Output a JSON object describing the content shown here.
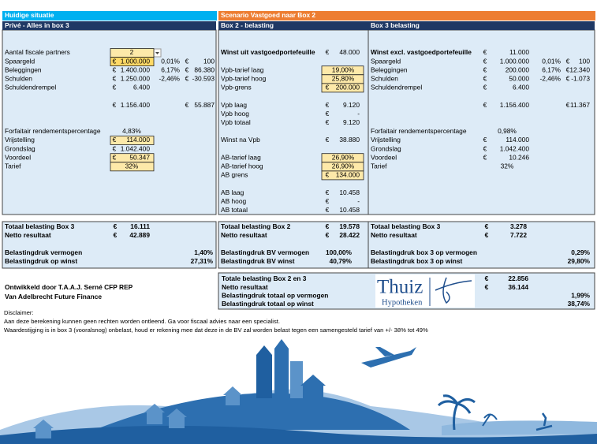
{
  "header": {
    "left_title": "Huidige situatie",
    "right_title": "Scenario Vastgoed naar Box 2"
  },
  "prive": {
    "title": "Privé - Alles in box 3",
    "rows": [
      [
        "Aantal fiscale partners",
        null,
        "2"
      ],
      [
        "Spaargeld",
        "€",
        "1.000.000",
        "0,01%",
        "€",
        "100"
      ],
      [
        "Beleggingen",
        "€",
        "1.400.000",
        "6,17%",
        "€",
        "86.380"
      ],
      [
        "Schulden",
        "€",
        "1.250.000",
        "-2,46%",
        "€",
        "-30.593"
      ],
      [
        "Schuldendrempel",
        "€",
        "6.400"
      ],
      [
        null,
        "€",
        "1.156.400",
        null,
        "€",
        "55.887"
      ],
      [
        "Forfaitair rendementspercentage",
        null,
        "4,83%"
      ],
      [
        "Vrijstelling",
        "€",
        "114.000"
      ],
      [
        "Grondslag",
        "€",
        "1.042.400"
      ],
      [
        "Voordeel",
        "€",
        "50.347"
      ],
      [
        "Tarief",
        null,
        "32%"
      ]
    ],
    "summary": [
      [
        "Totaal belasting Box 3",
        "€",
        "16.111"
      ],
      [
        "Netto resultaat",
        "€",
        "42.889"
      ]
    ],
    "ratios": [
      [
        "Belastingdruk vermogen",
        "1,40%"
      ],
      [
        "Belastingdruk op winst",
        "27,31%"
      ]
    ]
  },
  "box2": {
    "title": "Box 2 - belasting",
    "rows": [
      [
        "Winst uit vastgoedportefeuille",
        "€",
        "48.000"
      ],
      [
        "Vpb-tarief laag",
        null,
        "19,00%"
      ],
      [
        "Vpb-tarief hoog",
        null,
        "25,80%"
      ],
      [
        "Vpb-grens",
        "€",
        "200.000"
      ],
      [
        "Vpb laag",
        "€",
        "9.120"
      ],
      [
        "Vpb hoog",
        "€",
        "-"
      ],
      [
        "Vpb totaal",
        "€",
        "9.120"
      ],
      [
        "Winst na Vpb",
        "€",
        "38.880"
      ],
      [
        "AB-tarief laag",
        null,
        "26,90%"
      ],
      [
        "AB-tarief hoog",
        null,
        "26,90%"
      ],
      [
        "AB grens",
        "€",
        "134.000"
      ],
      [
        "AB laag",
        "€",
        "10.458"
      ],
      [
        "AB hoog",
        "€",
        "-"
      ],
      [
        "AB totaal",
        "€",
        "10.458"
      ]
    ],
    "summary": [
      [
        "Totaal belasting Box 2",
        "€",
        "19.578"
      ],
      [
        "Netto resultaat",
        "€",
        "28.422"
      ]
    ],
    "ratios": [
      [
        "Belastingdruk BV vermogen",
        "100,00%"
      ],
      [
        "Belastingdruk BV winst",
        "40,79%"
      ]
    ]
  },
  "box3": {
    "title": "Box 3 belasting",
    "rows": [
      [
        "Winst excl. vastgoedportefeuille",
        "€",
        "11.000"
      ],
      [
        "Spaargeld",
        "€",
        "1.000.000",
        "0,01%",
        "€",
        "100"
      ],
      [
        "Beleggingen",
        "€",
        "200.000",
        "6,17%",
        "€",
        "12.340"
      ],
      [
        "Schulden",
        "€",
        "50.000",
        "-2,46%",
        "€",
        "-1.073"
      ],
      [
        "Schuldendrempel",
        "€",
        "6.400"
      ],
      [
        null,
        "€",
        "1.156.400",
        null,
        "€",
        "11.367"
      ],
      [
        "Forfaitair rendementspercentage",
        null,
        "0,98%"
      ],
      [
        "Vrijstelling",
        "€",
        "114.000"
      ],
      [
        "Grondslag",
        "€",
        "1.042.400"
      ],
      [
        "Voordeel",
        "€",
        "10.246"
      ],
      [
        "Tarief",
        null,
        "32%"
      ]
    ],
    "summary": [
      [
        "Totaal belasting Box 3",
        "€",
        "3.278"
      ],
      [
        "Netto resultaat",
        "€",
        "7.722"
      ]
    ],
    "ratios": [
      [
        "Belastingdruk box 3 op vermogen",
        "0,29%"
      ],
      [
        "Belastingdruk box 3 op winst",
        "29,80%"
      ]
    ]
  },
  "total": {
    "rows": [
      [
        "Totale belasting Box 2 en 3",
        "€",
        "22.856"
      ],
      [
        "Netto resultaat",
        "€",
        "36.144"
      ],
      [
        "Belastingdruk totaal op vermogen",
        null,
        null,
        "1,99%"
      ],
      [
        "Belastingdruk totaal op winst",
        null,
        null,
        "38,74%"
      ]
    ]
  },
  "credits": [
    "Ontwikkeld door T.A.A.J. Serné CFP REP",
    "Van Adelbrecht Future Finance"
  ],
  "logo": {
    "name": "Thuiz",
    "tagline": "Hypotheken"
  },
  "disclaimer": [
    "Disclaimer:",
    "Aan deze berekening kunnen geen rechten worden ontleend. Ga voor fiscaal advies naar een specialist.",
    "Waardestijging is in box 3 (vooralsnog) onbelast, houd er rekening mee dat deze in de BV zal worden belast tegen een samengesteld tarief van +/- 38% tot 49%"
  ]
}
